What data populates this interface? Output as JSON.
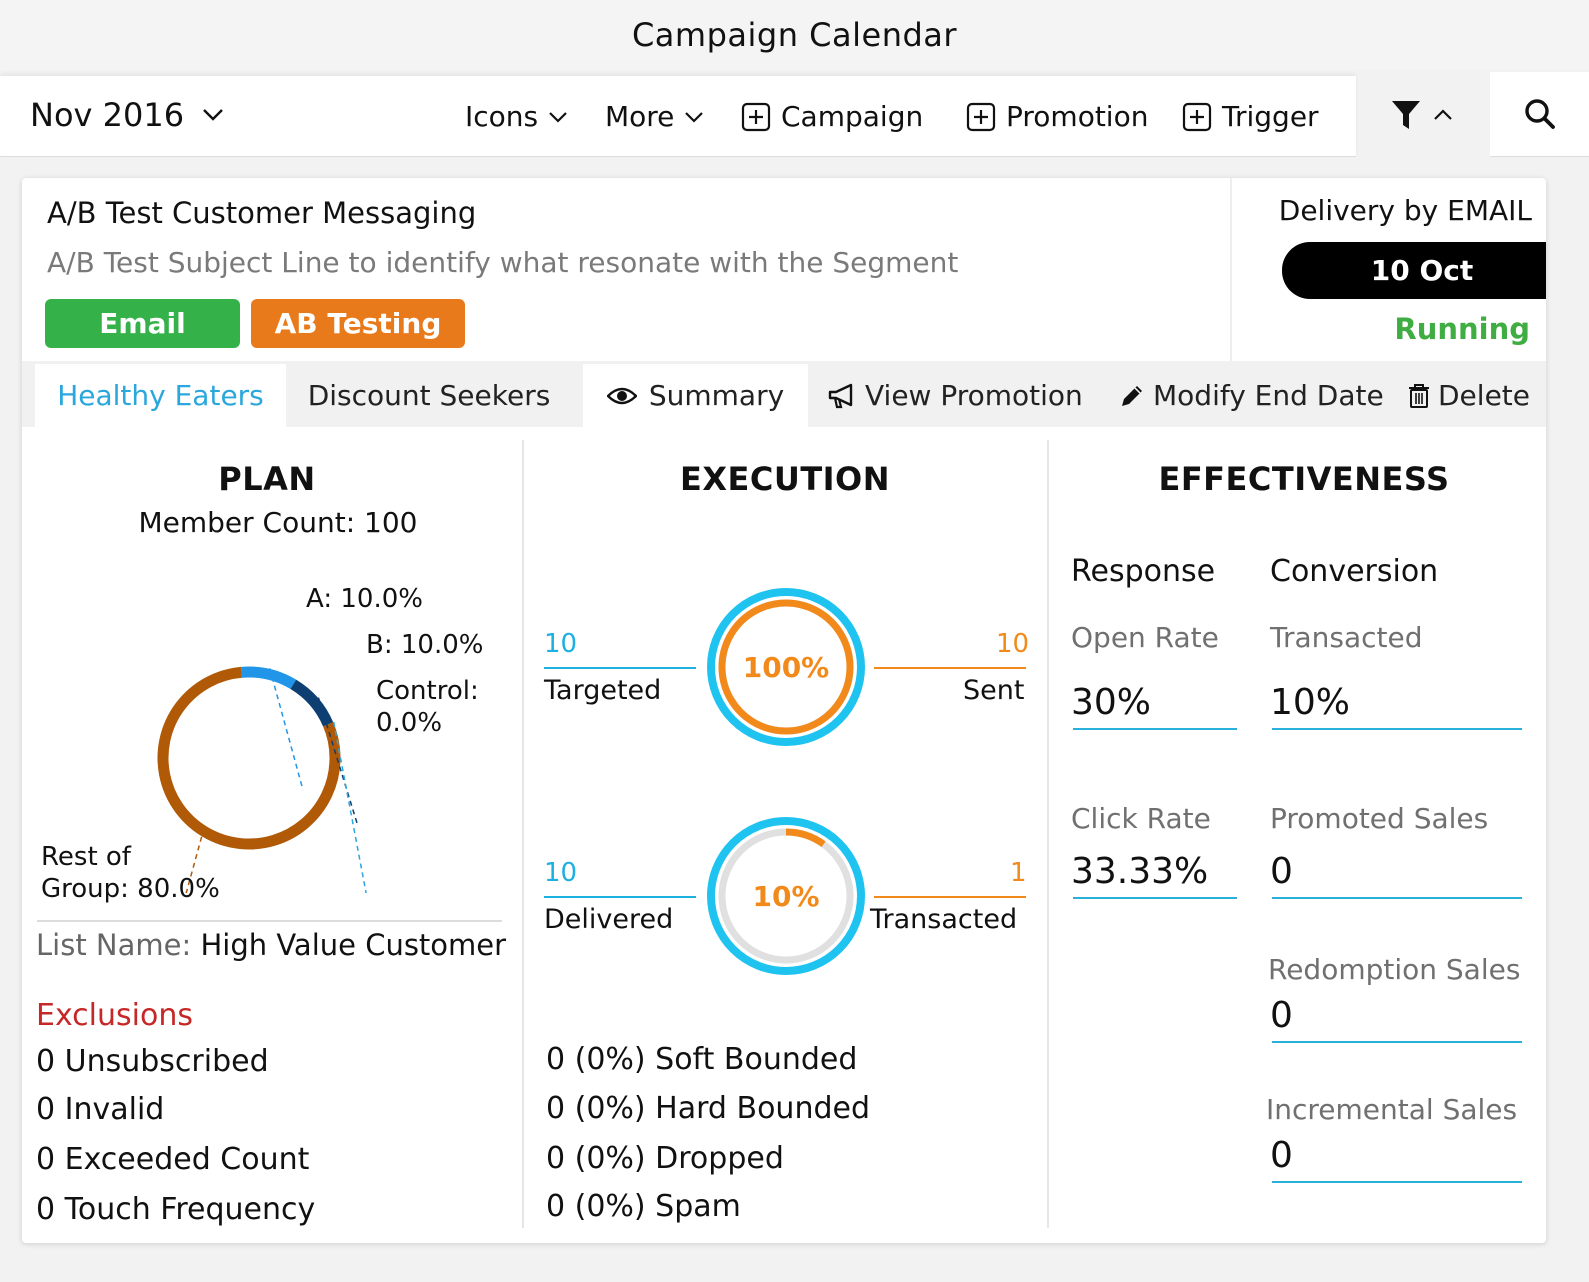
{
  "window": {
    "title": "Campaign Calendar"
  },
  "toolbar": {
    "month": "Nov 2016",
    "icons_label": "Icons",
    "more_label": "More",
    "campaign_label": "Campaign",
    "promotion_label": "Promotion",
    "trigger_label": "Trigger"
  },
  "campaign": {
    "title": "A/B Test Customer Messaging",
    "subtitle": "A/B Test Subject Line to identify what resonate with the Segment",
    "badges": [
      {
        "label": "Email",
        "color": "#35b14a"
      },
      {
        "label": "AB Testing",
        "color": "#e87a1b"
      }
    ],
    "delivery_label": "Delivery by EMAIL",
    "date": "10 Oct",
    "status": "Running",
    "status_color": "#3fad42"
  },
  "tabs": [
    {
      "label": "Healthy Eaters",
      "active": true
    },
    {
      "label": "Discount Seekers",
      "active": false
    }
  ],
  "actions": {
    "summary": "Summary",
    "view_promotion": "View Promotion",
    "modify_end_date": "Modify End Date",
    "delete": "Delete"
  },
  "plan": {
    "heading": "PLAN",
    "member_count": "Member Count: 100",
    "segments": [
      {
        "label": "A: 10.0%",
        "value": 10.0,
        "color": "#2196e8"
      },
      {
        "label": "B: 10.0%",
        "value": 10.0,
        "color": "#0d3f73"
      },
      {
        "label_line1": "Control:",
        "label_line2": "0.0%",
        "value": 0.0,
        "color": "#c0c0c0"
      },
      {
        "label_line1": "Rest of",
        "label_line2": "Group: 80.0%",
        "value": 80.0,
        "color": "#b05a08"
      }
    ],
    "list_name_key": "List Name:",
    "list_name_value": "High Value Customer",
    "exclusions_title": "Exclusions",
    "exclusions": [
      "0 Unsubscribed",
      "0 Invalid",
      "0 Exceeded Count",
      "0 Touch Frequency"
    ]
  },
  "execution": {
    "heading": "EXECUTION",
    "gauge1": {
      "percent_label": "100%",
      "progress": 1.0,
      "left_value": "10",
      "left_label": "Targeted",
      "right_value": "10",
      "right_label": "Sent"
    },
    "gauge2": {
      "percent_label": "10%",
      "progress": 0.1,
      "left_value": "10",
      "left_label": "Delivered",
      "right_value": "1",
      "right_label": "Transacted"
    },
    "bounces": [
      "0 (0%) Soft Bounded",
      "0 (0%) Hard Bounded",
      "0 (0%) Dropped",
      "0 (0%) Spam"
    ]
  },
  "effectiveness": {
    "heading": "EFFECTIVENESS",
    "response_heading": "Response",
    "conversion_heading": "Conversion",
    "open_rate": {
      "label": "Open Rate",
      "value": "30%"
    },
    "click_rate": {
      "label": "Click Rate",
      "value": "33.33%"
    },
    "transacted": {
      "label": "Transacted",
      "value": "10%"
    },
    "promoted_sales": {
      "label": "Promoted Sales",
      "value": "0"
    },
    "redemption_sales": {
      "label": "Redomption Sales",
      "value": "0"
    },
    "incremental_sales": {
      "label": "Incremental Sales",
      "value": "0"
    }
  },
  "colors": {
    "accent_blue": "#2aa7dc",
    "gauge_ring": "#1ec3f0",
    "gauge_progress": "#f28a1b",
    "exclusions_red": "#c62828"
  }
}
